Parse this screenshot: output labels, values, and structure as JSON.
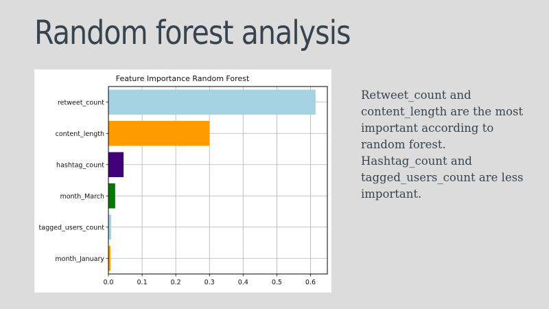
{
  "slide": {
    "title": "Random forest analysis",
    "body_lines": [
      "Retweet_count and",
      "content_length are the most",
      "important according to",
      "random forest.",
      "Hashtag_count and",
      "tagged_users_count are less",
      "important."
    ]
  },
  "chart_data": {
    "type": "bar",
    "orientation": "horizontal",
    "title": "Feature Importance Random Forest",
    "xlabel": "",
    "ylabel": "",
    "categories": [
      "retweet_count",
      "content_length",
      "hashtag_count",
      "month_March",
      "tagged_users_count",
      "month_January"
    ],
    "values": [
      0.615,
      0.3,
      0.045,
      0.02,
      0.008,
      0.006
    ],
    "colors": [
      "#a6d3e3",
      "#fe9b00",
      "#3f0078",
      "#007b00",
      "#a6d3e3",
      "#fe9b00"
    ],
    "xlim": [
      0,
      0.65
    ],
    "xticks": [
      0.0,
      0.1,
      0.2,
      0.3,
      0.4,
      0.5,
      0.6
    ],
    "xtick_labels": [
      "0.0",
      "0.1",
      "0.2",
      "0.3",
      "0.4",
      "0.5",
      "0.6"
    ],
    "grid": true,
    "legend": "none"
  }
}
